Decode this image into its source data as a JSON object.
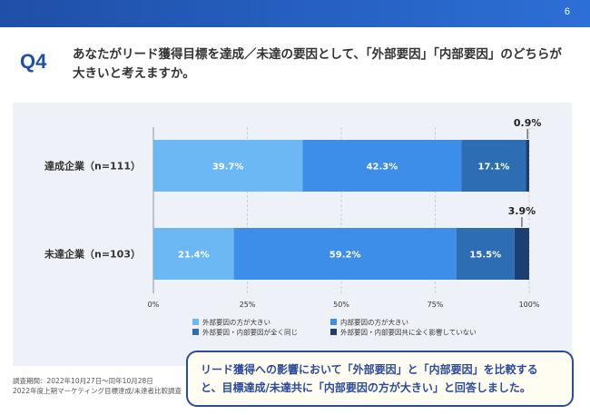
{
  "page": {
    "number": "6",
    "q_label": "Q4",
    "question": "あなたがリード獲得目標を達成／未達の要因として、「外部要因」「内部要因」のどちらが大きいと考えますか。",
    "footer_lines": [
      "調査期間：2022年10月27日〜同年10月28日",
      "2022年度上期マーケティング目標達成/未達者比較調査"
    ],
    "callout_lines": [
      "リード獲得への影響において「外部要因」と「内部要因」を比較する",
      "と、目標達成/未達共に「内部要因の方が大きい」と回答しました。"
    ],
    "colors": {
      "header": "#1f4fa8",
      "panel": "#eef1f7",
      "callout_border": "#2b4a9a"
    }
  },
  "chart_data": {
    "type": "bar",
    "orientation": "horizontal",
    "stacked": true,
    "categories": [
      "達成企業（n=111）",
      "未達企業（n=103）"
    ],
    "series": [
      {
        "name": "外部要因の方が大きい",
        "values": [
          39.7,
          21.4
        ],
        "color": "#6cb8f5",
        "labels": [
          "39.7%",
          "21.4%"
        ]
      },
      {
        "name": "内部要因の方が大きい",
        "values": [
          42.3,
          59.2
        ],
        "color": "#3d8ee8",
        "labels": [
          "42.3%",
          "59.2%"
        ]
      },
      {
        "name": "外部要因・内部要因が全く同じ",
        "values": [
          17.1,
          15.5
        ],
        "color": "#2d6db3",
        "labels": [
          "17.1%",
          "15.5%"
        ]
      },
      {
        "name": "外部要因・内部要因共に全く影響していない",
        "values": [
          0.9,
          3.9
        ],
        "color": "#1b3f73",
        "labels": [
          "0.9%",
          "3.9%"
        ]
      }
    ],
    "xlim": [
      0,
      100
    ],
    "xticks": [
      0,
      25,
      50,
      75,
      100
    ],
    "xtick_labels": [
      "0%",
      "25%",
      "50%",
      "75%",
      "100%"
    ],
    "grid": true,
    "legend_position": "bottom"
  }
}
